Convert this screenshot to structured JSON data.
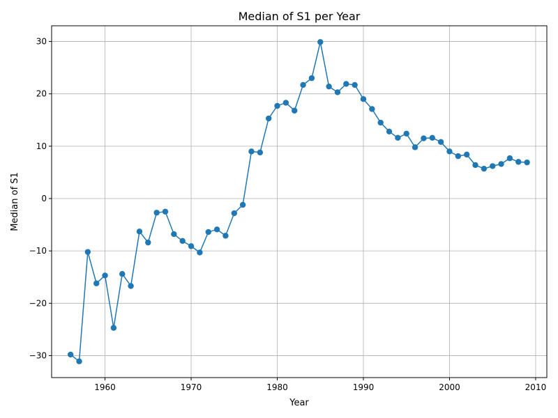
{
  "chart_data": {
    "type": "line",
    "title": "Median of S1 per Year",
    "xlabel": "Year",
    "ylabel": "Median of S1",
    "xlim": [
      1953.8,
      2011.3
    ],
    "ylim": [
      -34.2,
      33.0
    ],
    "xticks": [
      1960,
      1970,
      1980,
      1990,
      2000,
      2010
    ],
    "yticks": [
      -30,
      -20,
      -10,
      0,
      10,
      20,
      30
    ],
    "xtick_labels": [
      "1960",
      "1970",
      "1980",
      "1990",
      "2000",
      "2010"
    ],
    "ytick_labels": [
      "−30",
      "−20",
      "−10",
      "0",
      "10",
      "20",
      "30"
    ],
    "grid": true,
    "line_color": "#1f77b4",
    "marker": "circle",
    "series": [
      {
        "x": [
          1956,
          1957,
          1958,
          1959,
          1960,
          1961,
          1962,
          1963,
          1964,
          1965,
          1966,
          1967,
          1968,
          1969,
          1970,
          1971,
          1972,
          1973,
          1974,
          1975,
          1976,
          1977,
          1978,
          1979,
          1980,
          1981,
          1982,
          1983,
          1984,
          1985,
          1986,
          1987,
          1988,
          1989,
          1990,
          1991,
          1992,
          1993,
          1994,
          1995,
          1996,
          1997,
          1998,
          1999,
          2000,
          2001,
          2002,
          2003,
          2004,
          2005,
          2006,
          2007,
          2008,
          2009
        ],
        "y": [
          -29.8,
          -31.1,
          -10.2,
          -16.2,
          -14.7,
          -24.7,
          -14.4,
          -16.7,
          -6.3,
          -8.4,
          -2.7,
          -2.5,
          -6.8,
          -8.1,
          -9.1,
          -10.3,
          -6.4,
          -5.9,
          -7.1,
          -2.8,
          -1.2,
          9.0,
          8.8,
          15.3,
          17.7,
          18.3,
          16.8,
          21.7,
          23.0,
          29.9,
          21.4,
          20.3,
          21.9,
          21.7,
          19.0,
          17.1,
          14.5,
          12.8,
          11.6,
          12.4,
          9.8,
          11.5,
          11.6,
          10.8,
          9.0,
          8.1,
          8.4,
          6.4,
          5.7,
          6.2,
          6.6,
          7.7,
          7.0,
          6.9
        ]
      }
    ]
  }
}
